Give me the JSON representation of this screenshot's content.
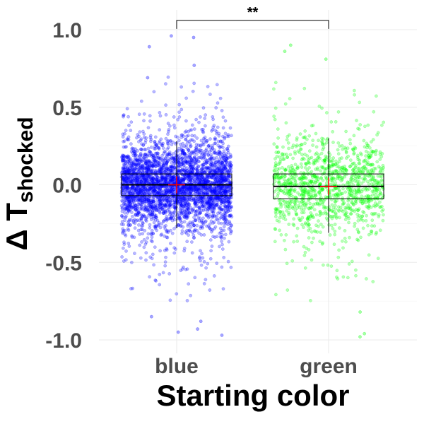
{
  "chart_data": {
    "type": "scatter",
    "subtype": "jittered points with boxplot, mean and sd crosshair",
    "title": "",
    "xlabel": "Starting color",
    "ylabel": {
      "symbol": "Δ T",
      "subscript": "shocked"
    },
    "categories": [
      "blue",
      "green"
    ],
    "ylim": [
      -1.1,
      1.1
    ],
    "yticks": [
      -1.0,
      -0.5,
      0.0,
      0.5,
      1.0
    ],
    "ytick_labels": [
      "-1.0",
      "-0.5",
      "0.0",
      "0.5",
      "1.0"
    ],
    "grid": true,
    "legend": "none",
    "series": [
      {
        "category": "blue",
        "color": "#0000ff",
        "n_points_approx": 3500,
        "spread_sd_approx": 0.17,
        "box": {
          "q1": -0.07,
          "median": 0.0,
          "q3": 0.07
        },
        "whisker": {
          "low": -0.28,
          "high": 0.28
        },
        "mean": 0.0,
        "outliers": [
          0.95,
          0.96,
          0.89,
          0.77,
          0.69,
          -0.85,
          -0.93,
          -0.97,
          -0.95,
          -0.88
        ]
      },
      {
        "category": "green",
        "color": "#00ff00",
        "n_points_approx": 1200,
        "spread_sd_approx": 0.19,
        "box": {
          "q1": -0.09,
          "median": -0.01,
          "q3": 0.07
        },
        "whisker": {
          "low": -0.31,
          "high": 0.3
        },
        "mean": -0.01,
        "outliers": [
          0.9,
          0.86,
          0.81,
          -0.98,
          -0.96,
          -0.82
        ]
      }
    ],
    "mean_marker_color": "#ff0000",
    "significance": {
      "between": [
        "blue",
        "green"
      ],
      "label": "**",
      "bracket_y": 1.06
    }
  }
}
